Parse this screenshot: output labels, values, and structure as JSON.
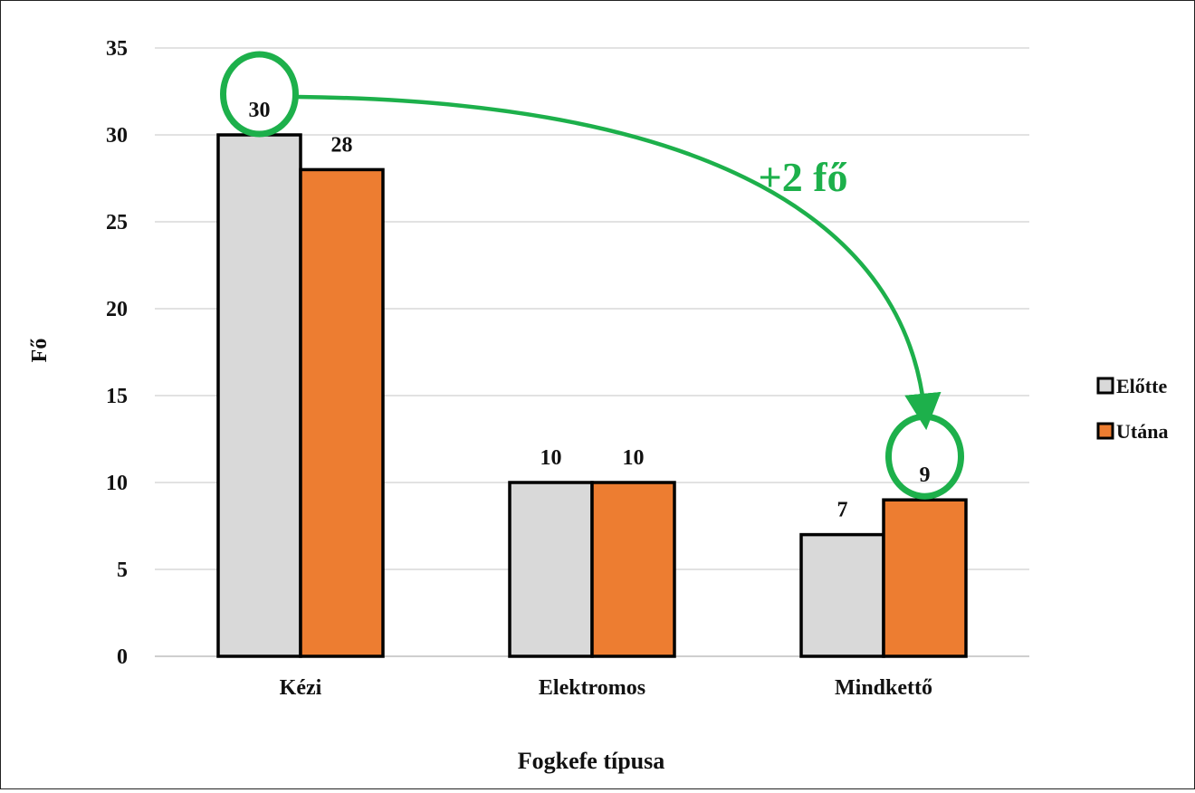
{
  "chart_data": {
    "type": "bar",
    "categories": [
      "Kézi",
      "Elektromos",
      "Mindkettő"
    ],
    "series": [
      {
        "name": "Előtte",
        "values": [
          30,
          10,
          7
        ],
        "color": "#d9d9d9"
      },
      {
        "name": "Utána",
        "values": [
          28,
          10,
          9
        ],
        "color": "#ed7d31"
      }
    ],
    "xlabel": "Fogkefe típusa",
    "ylabel": "Fő",
    "ylim": [
      0,
      35
    ],
    "yticks": [
      0,
      5,
      10,
      15,
      20,
      25,
      30,
      35
    ],
    "grid": true,
    "legend": "right",
    "annotation": {
      "text": "+2 fő",
      "color": "#1db04b",
      "from": {
        "category": "Kézi",
        "series": "Előtte"
      },
      "to": {
        "category": "Mindkettő",
        "series": "Utána"
      }
    }
  }
}
